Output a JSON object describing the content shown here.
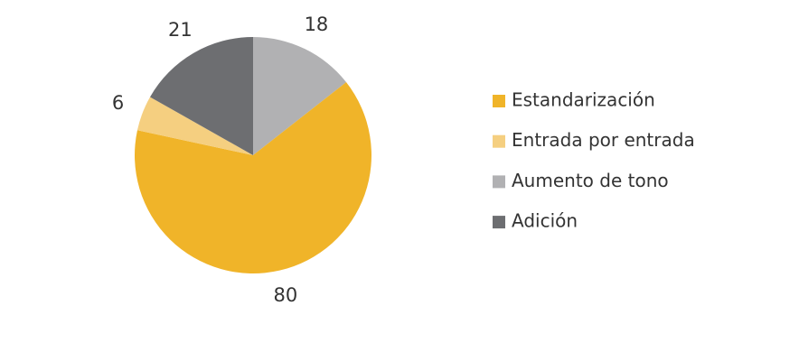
{
  "chart_data": {
    "type": "pie",
    "categories": [
      "Estandarización",
      "Entrada por entrada",
      "Aumento de tono",
      "Adición"
    ],
    "values": [
      80,
      6,
      18,
      21
    ],
    "colors": [
      "#f0b429",
      "#f5cf80",
      "#b1b1b3",
      "#6d6e71"
    ],
    "legend": "right"
  }
}
